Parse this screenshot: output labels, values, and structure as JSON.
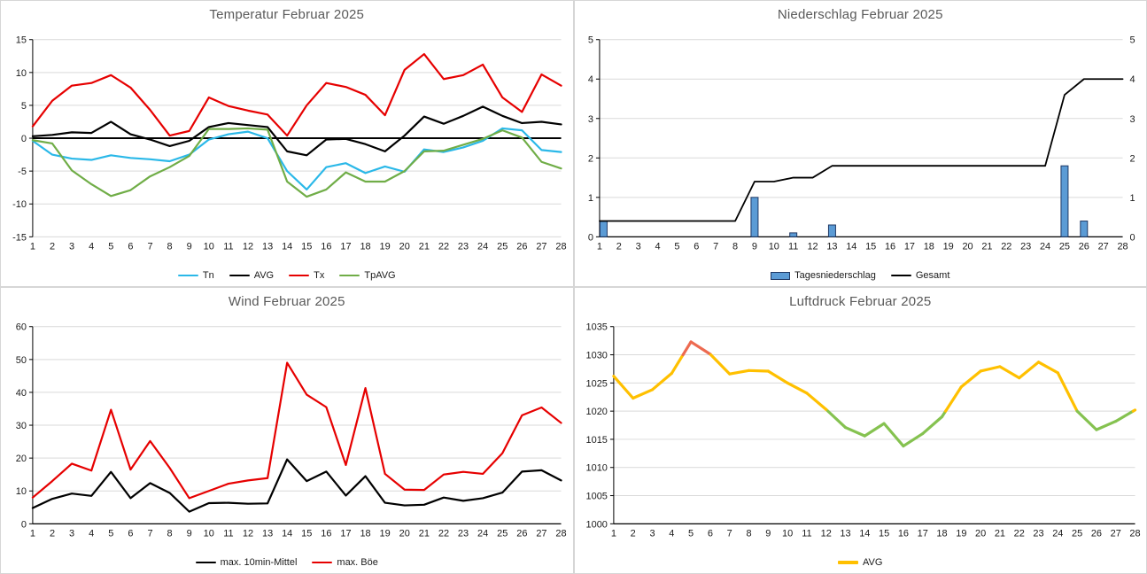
{
  "style": {
    "background": "#ffffff",
    "panel_border": "#d6d6d6",
    "grid_color": "#d9d9d9",
    "axis_color": "#000000",
    "title_color": "#595959",
    "tick_text_color": "#1a1a1a"
  },
  "chart_data": [
    {
      "id": "temperatur",
      "type": "line",
      "title": "Temperatur Februar 2025",
      "categories": [
        "1",
        "2",
        "3",
        "4",
        "5",
        "6",
        "7",
        "8",
        "9",
        "10",
        "11",
        "12",
        "13",
        "14",
        "15",
        "16",
        "17",
        "18",
        "19",
        "20",
        "21",
        "22",
        "23",
        "24",
        "25",
        "26",
        "27",
        "28"
      ],
      "ylim": [
        -15,
        15
      ],
      "y_ticks": [
        15,
        10,
        5,
        0,
        -5,
        -10,
        -15
      ],
      "grid": true,
      "legend_position": "bottom",
      "zero_axis": true,
      "series": [
        {
          "name": "Tn",
          "type": "line",
          "color": "#2ab8e8",
          "width": 2.2,
          "values": [
            -0.4,
            -2.5,
            -3.1,
            -3.3,
            -2.6,
            -3.0,
            -3.2,
            -3.5,
            -2.5,
            -0.2,
            0.6,
            1.0,
            0.0,
            -5.0,
            -7.8,
            -4.4,
            -3.8,
            -5.3,
            -4.3,
            -5.1,
            -1.7,
            -2.1,
            -1.4,
            -0.4,
            1.5,
            1.2,
            -1.8,
            -2.1
          ]
        },
        {
          "name": "AVG",
          "type": "line",
          "color": "#000000",
          "width": 2.2,
          "values": [
            0.3,
            0.5,
            0.9,
            0.8,
            2.5,
            0.6,
            -0.2,
            -1.2,
            -0.4,
            1.7,
            2.3,
            2.0,
            1.7,
            -2.0,
            -2.6,
            -0.2,
            -0.1,
            -0.9,
            -2.0,
            0.4,
            3.3,
            2.2,
            3.4,
            4.8,
            3.4,
            2.3,
            2.5,
            2.1
          ]
        },
        {
          "name": "Tx",
          "type": "line",
          "color": "#e60000",
          "width": 2.2,
          "values": [
            1.8,
            5.7,
            8.0,
            8.4,
            9.6,
            7.7,
            4.3,
            0.4,
            1.1,
            6.2,
            4.9,
            4.2,
            3.6,
            0.4,
            5.0,
            8.4,
            7.8,
            6.6,
            3.5,
            10.4,
            12.8,
            9.0,
            9.6,
            11.2,
            6.2,
            4.0,
            9.7,
            8.0
          ]
        },
        {
          "name": "TpAVG",
          "type": "line",
          "color": "#70ad47",
          "width": 2.2,
          "values": [
            -0.3,
            -0.8,
            -4.9,
            -7.0,
            -8.8,
            -7.9,
            -5.8,
            -4.4,
            -2.7,
            1.4,
            1.4,
            1.5,
            1.3,
            -6.6,
            -8.9,
            -7.8,
            -5.2,
            -6.6,
            -6.6,
            -5.0,
            -2.0,
            -1.9,
            -1.0,
            -0.1,
            1.2,
            0.1,
            -3.6,
            -4.6
          ]
        }
      ]
    },
    {
      "id": "niederschlag",
      "type": "bar+line",
      "title": "Niederschlag Februar 2025",
      "categories": [
        "1",
        "2",
        "3",
        "4",
        "5",
        "6",
        "7",
        "8",
        "9",
        "10",
        "11",
        "12",
        "13",
        "14",
        "15",
        "16",
        "17",
        "18",
        "19",
        "20",
        "21",
        "22",
        "23",
        "24",
        "25",
        "26",
        "27",
        "28"
      ],
      "ylim": [
        0,
        5
      ],
      "y_ticks": [
        5,
        4,
        3,
        2,
        1,
        0
      ],
      "y_ticks_right": true,
      "grid": true,
      "legend_position": "bottom",
      "zero_axis": false,
      "series": [
        {
          "name": "Tagesniederschlag",
          "type": "bar",
          "color": "#5b9bd5",
          "border": "#1f3864",
          "values": [
            0.4,
            0,
            0,
            0,
            0,
            0,
            0,
            0,
            1.0,
            0,
            0.1,
            0,
            0.3,
            0,
            0,
            0,
            0,
            0,
            0,
            0,
            0,
            0,
            0,
            0,
            1.8,
            0.4,
            0,
            0
          ]
        },
        {
          "name": "Gesamt",
          "type": "line",
          "color": "#000000",
          "width": 1.8,
          "values": [
            0.4,
            0.4,
            0.4,
            0.4,
            0.4,
            0.4,
            0.4,
            0.4,
            1.4,
            1.4,
            1.5,
            1.5,
            1.8,
            1.8,
            1.8,
            1.8,
            1.8,
            1.8,
            1.8,
            1.8,
            1.8,
            1.8,
            1.8,
            1.8,
            3.6,
            4.0,
            4.0,
            4.0
          ]
        }
      ]
    },
    {
      "id": "wind",
      "type": "line",
      "title": "Wind Februar 2025",
      "categories": [
        "1",
        "2",
        "3",
        "4",
        "5",
        "6",
        "7",
        "8",
        "9",
        "10",
        "11",
        "12",
        "13",
        "14",
        "15",
        "16",
        "17",
        "18",
        "19",
        "20",
        "21",
        "22",
        "23",
        "24",
        "25",
        "26",
        "27",
        "28"
      ],
      "ylim": [
        0,
        60
      ],
      "y_ticks": [
        60,
        50,
        40,
        30,
        20,
        10,
        0
      ],
      "grid": true,
      "legend_position": "bottom",
      "zero_axis": false,
      "series": [
        {
          "name": "max. 10min-Mittel",
          "type": "line",
          "color": "#000000",
          "width": 2.2,
          "values": [
            4.8,
            7.6,
            9.2,
            8.5,
            15.8,
            7.8,
            12.4,
            9.4,
            3.7,
            6.3,
            6.4,
            6.1,
            6.2,
            19.6,
            13.0,
            15.9,
            8.6,
            14.5,
            6.4,
            5.6,
            5.8,
            8.0,
            7.0,
            7.8,
            9.5,
            15.9,
            16.3,
            13.2
          ]
        },
        {
          "name": "max. Böe",
          "type": "line",
          "color": "#e60000",
          "width": 2.2,
          "values": [
            8.0,
            13.0,
            18.3,
            16.2,
            34.7,
            16.5,
            25.2,
            17.0,
            7.8,
            10.0,
            12.2,
            13.2,
            13.9,
            49.0,
            39.3,
            35.5,
            17.9,
            41.3,
            15.2,
            10.4,
            10.3,
            15.0,
            15.8,
            15.2,
            21.5,
            33.0,
            35.4,
            30.7
          ]
        }
      ]
    },
    {
      "id": "luftdruck",
      "type": "line",
      "title": "Luftdruck Februar 2025",
      "categories": [
        "1",
        "2",
        "3",
        "4",
        "5",
        "6",
        "7",
        "8",
        "9",
        "10",
        "11",
        "12",
        "13",
        "14",
        "15",
        "16",
        "17",
        "18",
        "19",
        "20",
        "21",
        "22",
        "23",
        "24",
        "25",
        "26",
        "27",
        "28"
      ],
      "ylim": [
        1000,
        1035
      ],
      "y_ticks": [
        1035,
        1030,
        1025,
        1020,
        1015,
        1010,
        1005,
        1000
      ],
      "grid": true,
      "legend_position": "bottom",
      "zero_axis": false,
      "series": [
        {
          "name": "AVG",
          "type": "line",
          "color": "#ffc000",
          "width": 3.2,
          "conditional": {
            "above": 1030,
            "above_color": "#ed6a50",
            "below": 1020,
            "below_color": "#85c250"
          },
          "values": [
            1026.2,
            1022.3,
            1023.8,
            1026.7,
            1032.3,
            1030.1,
            1026.6,
            1027.2,
            1027.1,
            1025.0,
            1023.2,
            1020.3,
            1017.1,
            1015.6,
            1017.8,
            1013.8,
            1016.0,
            1019.0,
            1024.3,
            1027.1,
            1027.9,
            1025.9,
            1028.7,
            1026.8,
            1020.0,
            1016.7,
            1018.2,
            1020.2
          ]
        }
      ]
    }
  ],
  "charts": [
    {
      "title": "Temperatur Februar 2025"
    },
    {
      "title": "Niederschlag Februar 2025"
    },
    {
      "title": "Wind Februar 2025"
    },
    {
      "title": "Luftdruck Februar 2025"
    }
  ]
}
